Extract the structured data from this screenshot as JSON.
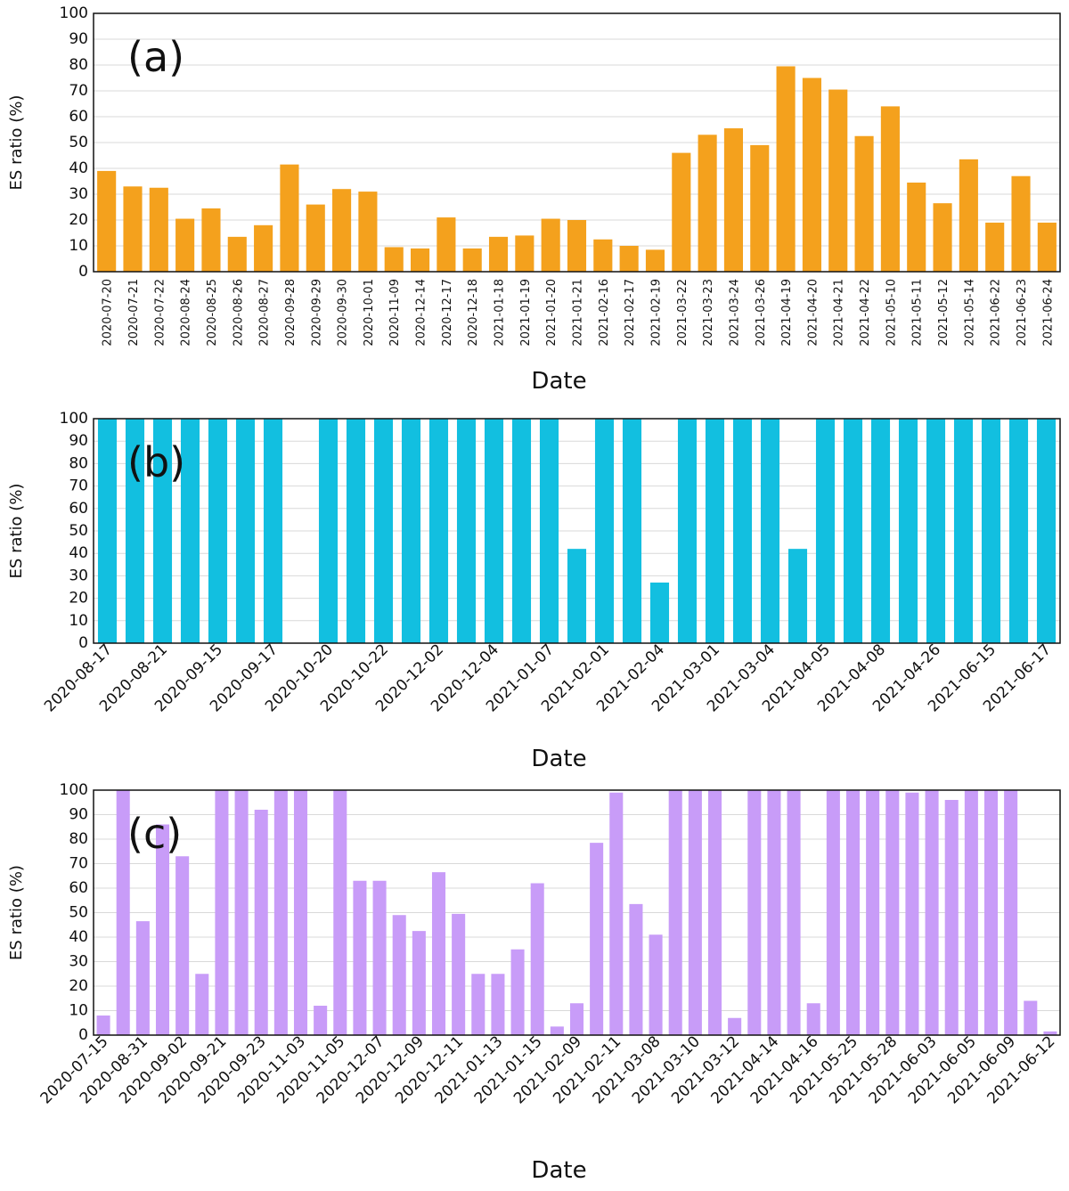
{
  "chart_data": [
    {
      "type": "bar",
      "annotation": "(a)",
      "ylabel": "ES ratio (%)",
      "xlabel": "Date",
      "color": "#f4a11d",
      "grid": true,
      "ylim": [
        0,
        100
      ],
      "yticks": [
        0,
        10,
        20,
        30,
        40,
        50,
        60,
        70,
        80,
        90,
        100
      ],
      "categories": [
        "2020-07-20",
        "2020-07-21",
        "2020-07-22",
        "2020-08-24",
        "2020-08-25",
        "2020-08-26",
        "2020-08-27",
        "2020-09-28",
        "2020-09-29",
        "2020-09-30",
        "2020-10-01",
        "2020-11-09",
        "2020-12-14",
        "2020-12-17",
        "2020-12-18",
        "2021-01-18",
        "2021-01-19",
        "2021-01-20",
        "2021-01-21",
        "2021-02-16",
        "2021-02-17",
        "2021-02-19",
        "2021-03-22",
        "2021-03-23",
        "2021-03-24",
        "2021-03-26",
        "2021-04-19",
        "2021-04-20",
        "2021-04-21",
        "2021-04-22",
        "2021-05-10",
        "2021-05-11",
        "2021-05-12",
        "2021-05-14",
        "2021-06-22",
        "2021-06-23",
        "2021-06-24"
      ],
      "values": [
        39,
        33,
        32.5,
        20.5,
        24.5,
        13.5,
        18,
        41.5,
        26,
        32,
        31,
        9.5,
        9,
        21,
        9,
        13.5,
        14,
        20.5,
        20,
        12.5,
        10,
        8.5,
        46,
        53,
        55.5,
        49,
        79.5,
        75,
        70.5,
        52.5,
        64,
        34.5,
        26.5,
        43.5,
        19,
        37,
        19
      ]
    },
    {
      "type": "bar",
      "annotation": "(b)",
      "ylabel": "ES ratio (%)",
      "xlabel": "Date",
      "color": "#12bfe0",
      "grid": true,
      "ylim": [
        0,
        100
      ],
      "yticks": [
        0,
        10,
        20,
        30,
        40,
        50,
        60,
        70,
        80,
        90,
        100
      ],
      "categories": [
        "2020-08-17",
        null,
        "2020-08-21",
        null,
        "2020-09-15",
        null,
        "2020-09-17",
        null,
        "2020-10-20",
        null,
        "2020-10-22",
        null,
        "2020-12-02",
        null,
        "2020-12-04",
        null,
        "2021-01-07",
        null,
        "2021-02-01",
        null,
        "2021-02-04",
        null,
        "2021-03-01",
        null,
        "2021-03-04",
        null,
        "2021-04-05",
        null,
        "2021-04-08",
        null,
        "2021-04-26",
        null,
        "2021-06-15",
        null,
        "2021-06-17"
      ],
      "values": [
        100,
        100,
        100,
        100,
        100,
        100,
        100,
        0,
        100,
        100,
        100,
        100,
        100,
        100,
        100,
        100,
        100,
        42,
        100,
        100,
        27,
        100,
        100,
        100,
        100,
        42,
        100,
        100,
        100,
        100,
        100,
        100,
        100,
        100,
        100
      ]
    },
    {
      "type": "bar",
      "annotation": "(c)",
      "ylabel": "ES ratio (%)",
      "xlabel": "Date",
      "color": "#c89cf8",
      "grid": true,
      "ylim": [
        0,
        100
      ],
      "yticks": [
        0,
        10,
        20,
        30,
        40,
        50,
        60,
        70,
        80,
        90,
        100
      ],
      "categories": [
        "2020-07-15",
        null,
        "2020-08-31",
        null,
        "2020-09-02",
        null,
        "2020-09-21",
        null,
        "2020-09-23",
        null,
        "2020-11-03",
        null,
        "2020-11-05",
        null,
        "2020-12-07",
        null,
        "2020-12-09",
        null,
        "2020-12-11",
        null,
        "2021-01-13",
        null,
        "2021-01-15",
        null,
        "2021-02-09",
        null,
        "2021-02-11",
        null,
        "2021-03-08",
        null,
        "2021-03-10",
        null,
        "2021-03-12",
        null,
        "2021-04-14",
        null,
        "2021-04-16",
        null,
        "2021-05-25",
        null,
        "2021-05-28",
        null,
        "2021-06-03",
        null,
        "2021-06-05",
        null,
        "2021-06-09",
        null,
        "2021-06-12"
      ],
      "values": [
        8,
        100,
        46.5,
        86,
        73,
        25,
        100,
        100,
        92,
        100,
        100,
        12,
        100,
        63,
        63,
        49,
        42.5,
        66.5,
        49.5,
        25,
        25,
        35,
        62,
        3.5,
        13,
        78.5,
        99,
        53.5,
        41,
        100,
        100,
        100,
        7,
        100,
        100,
        100,
        13,
        100,
        100,
        100,
        100,
        99,
        100,
        96,
        100,
        100,
        100,
        14,
        1.5
      ]
    }
  ]
}
